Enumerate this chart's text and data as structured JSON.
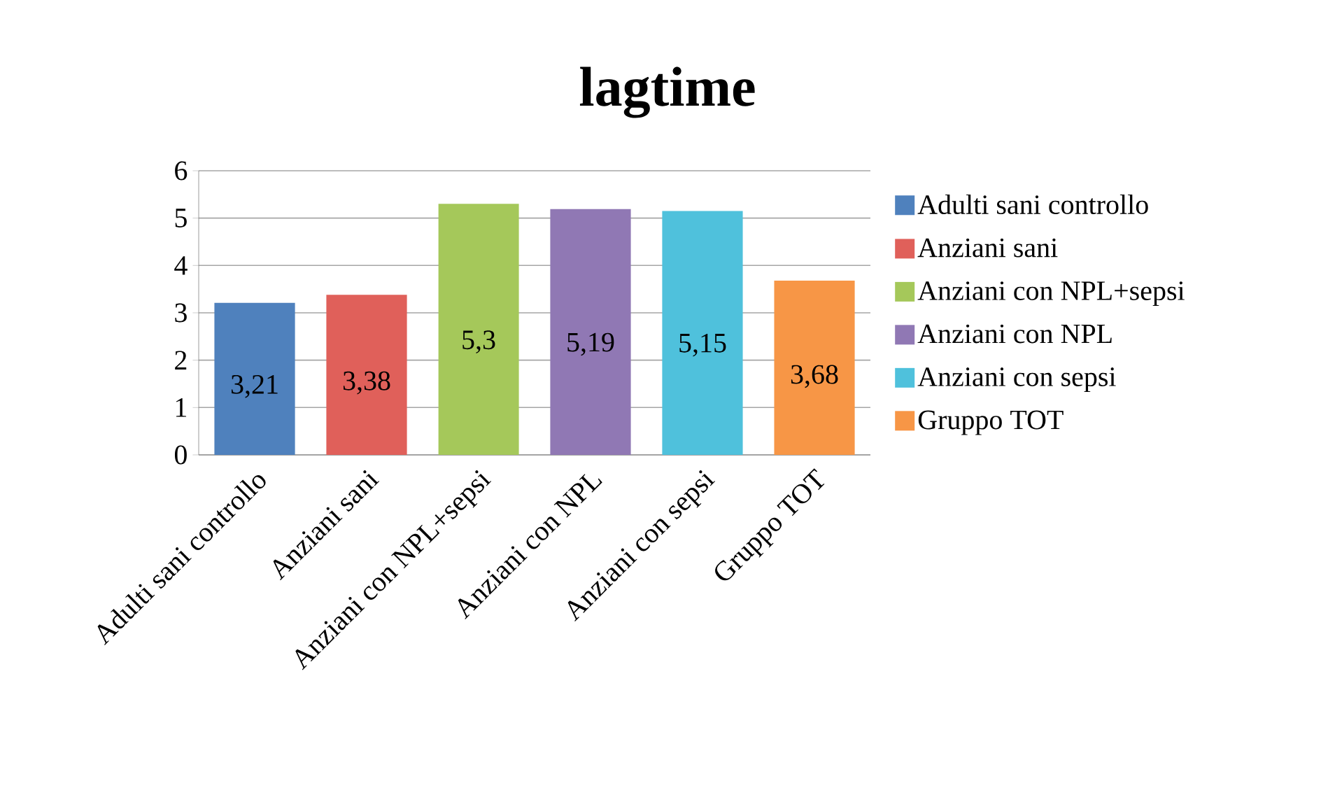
{
  "chart_data": {
    "type": "bar",
    "title": "lagtime",
    "categories": [
      "Adulti sani controllo",
      "Anziani sani",
      "Anziani con NPL+sepsi",
      "Anziani con NPL",
      "Anziani con sepsi",
      "Gruppo TOT"
    ],
    "series": [
      {
        "name": "Adulti sani controllo",
        "color": "#4f81bd",
        "values": [
          3.21,
          null,
          null,
          null,
          null,
          null
        ],
        "value_labels": [
          "3,21",
          null,
          null,
          null,
          null,
          null
        ]
      },
      {
        "name": "Anziani sani",
        "color": "#e0605a",
        "values": [
          null,
          3.38,
          null,
          null,
          null,
          null
        ],
        "value_labels": [
          null,
          "3,38",
          null,
          null,
          null,
          null
        ]
      },
      {
        "name": "Anziani con NPL+sepsi",
        "color": "#a5c85a",
        "values": [
          null,
          null,
          5.3,
          null,
          null,
          null
        ],
        "value_labels": [
          null,
          null,
          "5,3",
          null,
          null,
          null
        ]
      },
      {
        "name": "Anziani con NPL",
        "color": "#9078b4",
        "values": [
          null,
          null,
          null,
          5.19,
          null,
          null
        ],
        "value_labels": [
          null,
          null,
          null,
          "5,19",
          null,
          null
        ]
      },
      {
        "name": "Anziani con sepsi",
        "color": "#4fc1dc",
        "values": [
          null,
          null,
          null,
          null,
          5.15,
          null
        ],
        "value_labels": [
          null,
          null,
          null,
          null,
          "5,15",
          null
        ]
      },
      {
        "name": "Gruppo TOT",
        "color": "#f79646",
        "values": [
          null,
          null,
          null,
          null,
          null,
          3.68
        ],
        "value_labels": [
          null,
          null,
          null,
          null,
          null,
          "3,68"
        ]
      }
    ],
    "ylim": [
      0,
      6
    ],
    "yticks": [
      0,
      1,
      2,
      3,
      4,
      5,
      6
    ],
    "grid": "y",
    "legend": "right"
  }
}
